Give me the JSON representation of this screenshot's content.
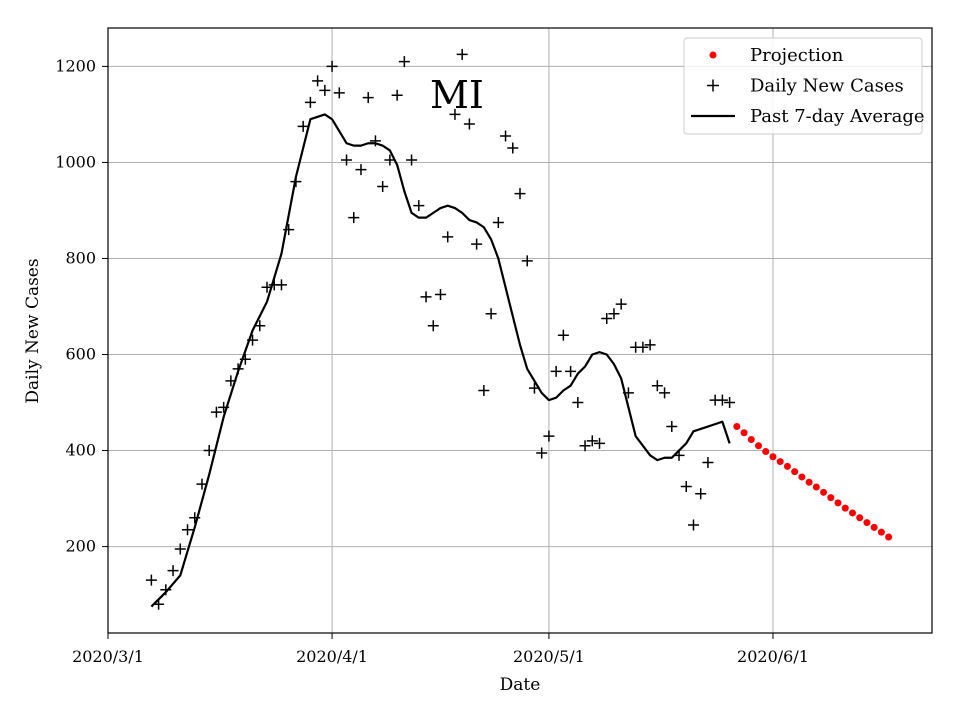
{
  "chart_data": {
    "type": "scatter",
    "title": "",
    "annotation": "MI",
    "xlabel": "Date",
    "ylabel": "Daily New Cases",
    "x_ticks": [
      "2020/3/1",
      "2020/4/1",
      "2020/5/1",
      "2020/6/1"
    ],
    "y_ticks": [
      200,
      400,
      600,
      800,
      1000,
      1200
    ],
    "xlim": [
      "2020-03-01",
      "2020-06-23"
    ],
    "ylim": [
      20,
      1280
    ],
    "grid": true,
    "legend_position": "top-right",
    "series": [
      {
        "name": "Projection",
        "type": "scatter",
        "marker": "dot",
        "color": "#ff0000",
        "x": [
          "2020-05-27",
          "2020-05-28",
          "2020-05-29",
          "2020-05-30",
          "2020-05-31",
          "2020-06-01",
          "2020-06-02",
          "2020-06-03",
          "2020-06-04",
          "2020-06-05",
          "2020-06-06",
          "2020-06-07",
          "2020-06-08",
          "2020-06-09",
          "2020-06-10",
          "2020-06-11",
          "2020-06-12",
          "2020-06-13",
          "2020-06-14",
          "2020-06-15",
          "2020-06-16",
          "2020-06-17"
        ],
        "y": [
          450,
          437,
          423,
          410,
          398,
          387,
          377,
          367,
          356,
          345,
          334,
          324,
          313,
          302,
          291,
          280,
          270,
          260,
          250,
          240,
          230,
          220
        ]
      },
      {
        "name": "Daily New Cases",
        "type": "scatter",
        "marker": "plus",
        "color": "#000000",
        "x": [
          "2020-03-07",
          "2020-03-08",
          "2020-03-09",
          "2020-03-10",
          "2020-03-11",
          "2020-03-12",
          "2020-03-13",
          "2020-03-14",
          "2020-03-15",
          "2020-03-16",
          "2020-03-17",
          "2020-03-18",
          "2020-03-19",
          "2020-03-20",
          "2020-03-21",
          "2020-03-22",
          "2020-03-23",
          "2020-03-24",
          "2020-03-25",
          "2020-03-26",
          "2020-03-27",
          "2020-03-28",
          "2020-03-29",
          "2020-03-30",
          "2020-03-31",
          "2020-04-01",
          "2020-04-02",
          "2020-04-03",
          "2020-04-04",
          "2020-04-05",
          "2020-04-06",
          "2020-04-07",
          "2020-04-08",
          "2020-04-09",
          "2020-04-10",
          "2020-04-11",
          "2020-04-12",
          "2020-04-13",
          "2020-04-14",
          "2020-04-15",
          "2020-04-16",
          "2020-04-17",
          "2020-04-18",
          "2020-04-19",
          "2020-04-20",
          "2020-04-21",
          "2020-04-22",
          "2020-04-23",
          "2020-04-24",
          "2020-04-25",
          "2020-04-26",
          "2020-04-27",
          "2020-04-28",
          "2020-04-29",
          "2020-04-30",
          "2020-05-01",
          "2020-05-02",
          "2020-05-03",
          "2020-05-04",
          "2020-05-05",
          "2020-05-06",
          "2020-05-07",
          "2020-05-08",
          "2020-05-09",
          "2020-05-10",
          "2020-05-11",
          "2020-05-12",
          "2020-05-13",
          "2020-05-14",
          "2020-05-15",
          "2020-05-16",
          "2020-05-17",
          "2020-05-18",
          "2020-05-19",
          "2020-05-20",
          "2020-05-21",
          "2020-05-22",
          "2020-05-23",
          "2020-05-24",
          "2020-05-25",
          "2020-05-26"
        ],
        "y": [
          130,
          80,
          110,
          150,
          195,
          235,
          260,
          330,
          400,
          480,
          490,
          545,
          570,
          590,
          630,
          660,
          740,
          745,
          745,
          860,
          960,
          1075,
          1125,
          1170,
          1150,
          1200,
          1145,
          1005,
          885,
          985,
          1135,
          1045,
          950,
          1005,
          1140,
          1210,
          1005,
          910,
          720,
          660,
          725,
          845,
          1100,
          1225,
          1080,
          830,
          525,
          685,
          875,
          1055,
          1030,
          935,
          795,
          530,
          395,
          430,
          565,
          640,
          565,
          500,
          410,
          420,
          415,
          675,
          685,
          705,
          520,
          615,
          615,
          620,
          535,
          520,
          450,
          390,
          325,
          245,
          310,
          375,
          505,
          505,
          500
        ]
      },
      {
        "name": "Past 7-day Average",
        "type": "line",
        "color": "#000000",
        "x": [
          "2020-03-07",
          "2020-03-09",
          "2020-03-11",
          "2020-03-13",
          "2020-03-15",
          "2020-03-17",
          "2020-03-19",
          "2020-03-21",
          "2020-03-23",
          "2020-03-25",
          "2020-03-27",
          "2020-03-29",
          "2020-03-31",
          "2020-04-01",
          "2020-04-02",
          "2020-04-03",
          "2020-04-04",
          "2020-04-05",
          "2020-04-06",
          "2020-04-07",
          "2020-04-08",
          "2020-04-09",
          "2020-04-10",
          "2020-04-11",
          "2020-04-12",
          "2020-04-13",
          "2020-04-14",
          "2020-04-15",
          "2020-04-16",
          "2020-04-17",
          "2020-04-18",
          "2020-04-19",
          "2020-04-20",
          "2020-04-21",
          "2020-04-22",
          "2020-04-23",
          "2020-04-24",
          "2020-04-25",
          "2020-04-26",
          "2020-04-27",
          "2020-04-28",
          "2020-04-29",
          "2020-04-30",
          "2020-05-01",
          "2020-05-02",
          "2020-05-03",
          "2020-05-04",
          "2020-05-05",
          "2020-05-06",
          "2020-05-07",
          "2020-05-08",
          "2020-05-09",
          "2020-05-10",
          "2020-05-11",
          "2020-05-12",
          "2020-05-13",
          "2020-05-14",
          "2020-05-15",
          "2020-05-16",
          "2020-05-17",
          "2020-05-18",
          "2020-05-19",
          "2020-05-20",
          "2020-05-21",
          "2020-05-22",
          "2020-05-23",
          "2020-05-24",
          "2020-05-25",
          "2020-05-26"
        ],
        "y": [
          75,
          105,
          140,
          240,
          350,
          470,
          565,
          650,
          710,
          810,
          970,
          1090,
          1100,
          1090,
          1065,
          1040,
          1035,
          1035,
          1040,
          1040,
          1035,
          1025,
          995,
          940,
          895,
          885,
          885,
          895,
          905,
          910,
          905,
          895,
          880,
          875,
          865,
          840,
          800,
          740,
          680,
          620,
          570,
          545,
          520,
          505,
          510,
          525,
          535,
          560,
          575,
          600,
          605,
          600,
          580,
          550,
          490,
          430,
          410,
          390,
          380,
          385,
          385,
          400,
          415,
          440,
          445,
          450,
          455,
          460,
          415
        ]
      }
    ]
  }
}
